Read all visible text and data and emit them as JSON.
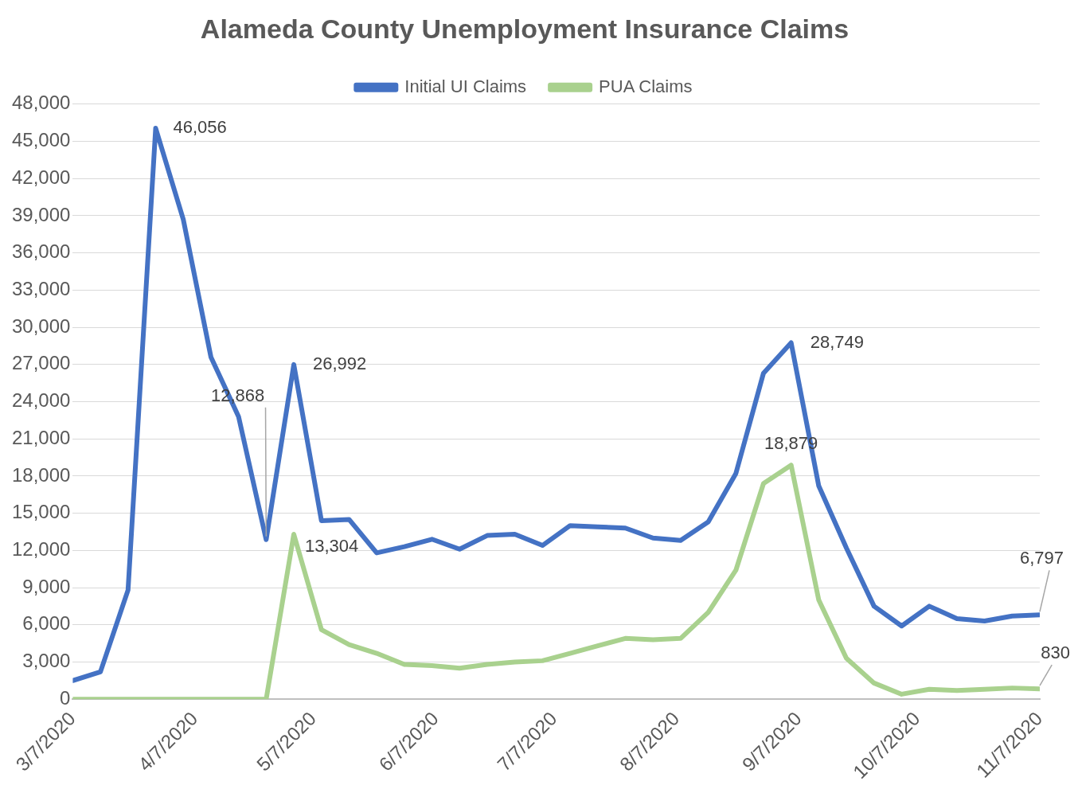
{
  "chart_data": {
    "type": "line",
    "title": "Alameda County Unemployment Insurance Claims",
    "x": [
      "2020-03-07",
      "2020-03-14",
      "2020-03-21",
      "2020-03-28",
      "2020-04-04",
      "2020-04-11",
      "2020-04-18",
      "2020-04-25",
      "2020-05-02",
      "2020-05-09",
      "2020-05-16",
      "2020-05-23",
      "2020-05-30",
      "2020-06-06",
      "2020-06-13",
      "2020-06-20",
      "2020-06-27",
      "2020-07-04",
      "2020-07-11",
      "2020-07-18",
      "2020-07-25",
      "2020-08-01",
      "2020-08-08",
      "2020-08-15",
      "2020-08-22",
      "2020-08-29",
      "2020-09-05",
      "2020-09-12",
      "2020-09-19",
      "2020-09-26",
      "2020-10-03",
      "2020-10-10",
      "2020-10-17",
      "2020-10-24",
      "2020-10-31",
      "2020-11-07"
    ],
    "series": [
      {
        "name": "Initial UI Claims",
        "color": "#4472c4",
        "values": [
          1500,
          2200,
          8800,
          46056,
          38700,
          27600,
          22800,
          12868,
          26992,
          14400,
          14500,
          11800,
          12300,
          12900,
          12100,
          13200,
          13300,
          12400,
          14000,
          13900,
          13800,
          13000,
          12800,
          14300,
          18200,
          26300,
          28749,
          17200,
          12200,
          7500,
          5900,
          7500,
          6500,
          6300,
          6700,
          6797
        ]
      },
      {
        "name": "PUA Claims",
        "color": "#a9d18e",
        "values": [
          0,
          0,
          0,
          0,
          0,
          0,
          0,
          0,
          13304,
          5600,
          4400,
          3700,
          2800,
          2700,
          2500,
          2800,
          3000,
          3100,
          3700,
          4300,
          4900,
          4800,
          4900,
          7000,
          10400,
          17400,
          18879,
          8000,
          3300,
          1300,
          400,
          800,
          700,
          800,
          900,
          830
        ]
      }
    ],
    "annotations": [
      {
        "text": "46,056",
        "x": "2020-03-28",
        "y": 46056
      },
      {
        "text": "12,868",
        "x": "2020-04-25",
        "y": 12868
      },
      {
        "text": "26,992",
        "x": "2020-05-02",
        "y": 26992
      },
      {
        "text": "13,304",
        "x": "2020-05-02",
        "y": 13304
      },
      {
        "text": "28,749",
        "x": "2020-09-05",
        "y": 28749
      },
      {
        "text": "18,879",
        "x": "2020-09-05",
        "y": 18879
      },
      {
        "text": "6,797",
        "x": "2020-11-07",
        "y": 6797
      },
      {
        "text": "830",
        "x": "2020-11-07",
        "y": 830
      }
    ],
    "xlim": [
      "2020-03-07",
      "2020-11-07"
    ],
    "xticks": [
      {
        "value": "2020-03-07",
        "label": "3/7/2020"
      },
      {
        "value": "2020-04-07",
        "label": "4/7/2020"
      },
      {
        "value": "2020-05-07",
        "label": "5/7/2020"
      },
      {
        "value": "2020-06-07",
        "label": "6/7/2020"
      },
      {
        "value": "2020-07-07",
        "label": "7/7/2020"
      },
      {
        "value": "2020-08-07",
        "label": "8/7/2020"
      },
      {
        "value": "2020-09-07",
        "label": "9/7/2020"
      },
      {
        "value": "2020-10-07",
        "label": "10/7/2020"
      },
      {
        "value": "2020-11-07",
        "label": "11/7/2020"
      }
    ],
    "ylim": [
      0,
      48000
    ],
    "yticks": [
      {
        "value": 0,
        "label": "0"
      },
      {
        "value": 3000,
        "label": "3,000"
      },
      {
        "value": 6000,
        "label": "6,000"
      },
      {
        "value": 9000,
        "label": "9,000"
      },
      {
        "value": 12000,
        "label": "12,000"
      },
      {
        "value": 15000,
        "label": "15,000"
      },
      {
        "value": 18000,
        "label": "18,000"
      },
      {
        "value": 21000,
        "label": "21,000"
      },
      {
        "value": 24000,
        "label": "24,000"
      },
      {
        "value": 27000,
        "label": "27,000"
      },
      {
        "value": 30000,
        "label": "30,000"
      },
      {
        "value": 33000,
        "label": "33,000"
      },
      {
        "value": 36000,
        "label": "36,000"
      },
      {
        "value": 39000,
        "label": "39,000"
      },
      {
        "value": 42000,
        "label": "42,000"
      },
      {
        "value": 45000,
        "label": "45,000"
      },
      {
        "value": 48000,
        "label": "48,000"
      }
    ],
    "grid": "y",
    "legend": "top",
    "marker": "none",
    "line_style": "solid"
  }
}
